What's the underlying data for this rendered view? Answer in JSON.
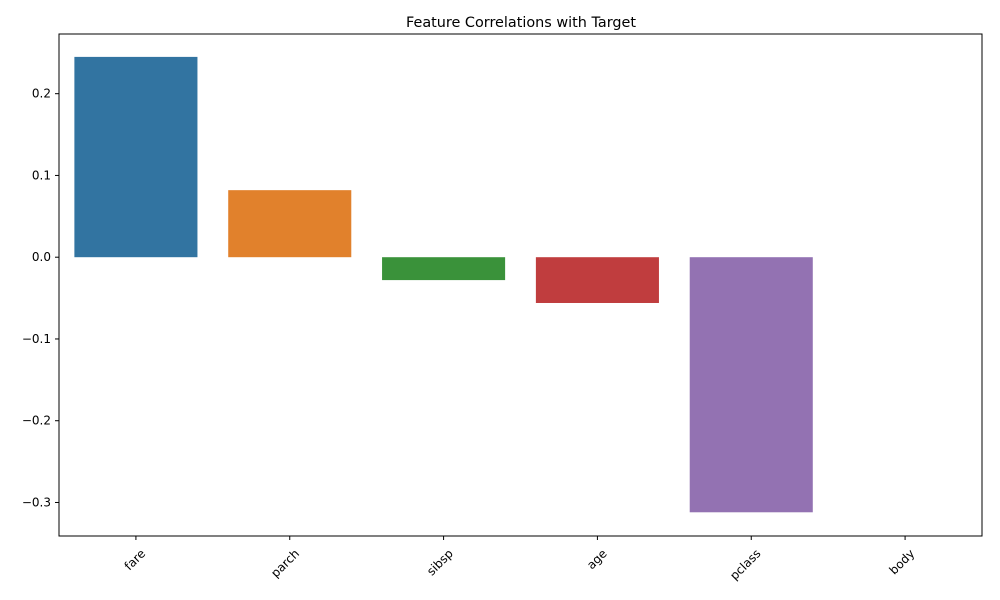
{
  "chart_data": {
    "type": "bar",
    "title": "Feature Correlations with Target",
    "xlabel": "",
    "ylabel": "",
    "categories": [
      "fare",
      "parch",
      "sibsp",
      "age",
      "pclass",
      "body"
    ],
    "values": [
      0.245,
      0.082,
      -0.028,
      -0.056,
      -0.312,
      null
    ],
    "colors": [
      "#3274a1",
      "#e1812c",
      "#3a923a",
      "#c03d3e",
      "#9372b2",
      "#845b53"
    ],
    "ylim": [
      -0.341,
      0.273
    ],
    "yticks": [
      0.2,
      0.1,
      0.0,
      -0.1,
      -0.2,
      -0.3
    ],
    "ytick_labels": [
      "0.2",
      "0.1",
      "0.0",
      "−0.1",
      "−0.2",
      "−0.3"
    ],
    "grid": false,
    "legend": "none"
  }
}
